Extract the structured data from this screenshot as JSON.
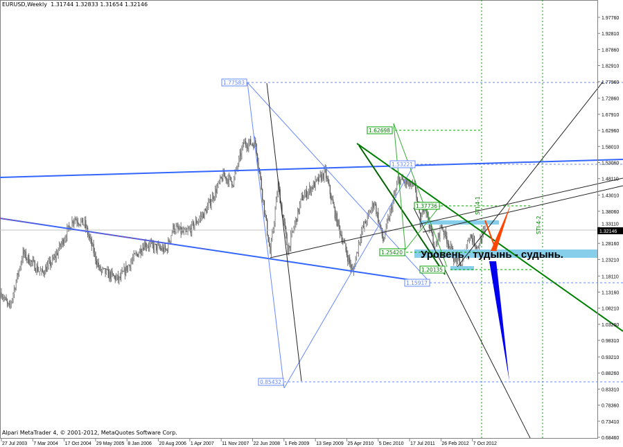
{
  "header": {
    "symbol": "EURUSD,Weekly",
    "ohlc": "1.31744 1.32833 1.31654 1.32146"
  },
  "footer": {
    "copyright": "Alpari MetaTrader 4, © 2001-2012, MetaQuotes Software Corp."
  },
  "annotation_text": "Уровень , тудынь - судынь.",
  "vertical_labels": [
    "STI-4-1",
    "STI-4-2"
  ],
  "price_labels": {
    "high": "1.77583",
    "low": "0.85432",
    "fib_green_top": "1.62698",
    "blue_mid": "1.53221",
    "green_mid": "1.37736",
    "green_low": "1.25420",
    "green_bottom": "1.20135",
    "blue_low": "1.15917"
  },
  "colors": {
    "background": "#ffffff",
    "candle": "#808080",
    "blue_line": "#3366ff",
    "green_line": "#008000",
    "orange": "#ff4500",
    "highlight": "#87ceeb",
    "current_price_bg": "#000000"
  },
  "chart_data": {
    "type": "candlestick",
    "title": "EURUSD,Weekly",
    "current_price": "1.32146",
    "y_ticks": [
      "1.97760",
      "1.92810",
      "1.87860",
      "1.82910",
      "1.77960",
      "1.72860",
      "1.67910",
      "1.62960",
      "1.58010",
      "1.53060",
      "1.48110",
      "1.43010",
      "1.38060",
      "1.33110",
      "1.28160",
      "1.23210",
      "1.18110",
      "1.13160",
      "1.08210",
      "1.03260",
      "0.98310",
      "0.93210",
      "0.88260",
      "0.83310",
      "0.78360",
      "0.73410",
      "0.68460"
    ],
    "ylim": [
      0.6846,
      1.9776
    ],
    "x_ticks": [
      "27 Jul 2003",
      "7 Mar 2004",
      "17 Oct 2004",
      "29 May 2005",
      "8 Jan 2006",
      "20 Aug 2006",
      "1 Apr 2007",
      "11 Nov 2007",
      "22 Jun 2008",
      "1 Feb 2009",
      "13 Sep 2009",
      "25 Apr 2010",
      "5 Dec 2010",
      "17 Jul 2011",
      "26 Feb 2012",
      "7 Oct 2012"
    ],
    "approx_closes": [
      [
        "2003-07-27",
        1.13
      ],
      [
        "2003-09-21",
        1.08
      ],
      [
        "2003-12-28",
        1.25
      ],
      [
        "2004-05-09",
        1.19
      ],
      [
        "2004-08-01",
        1.23
      ],
      [
        "2004-12-26",
        1.36
      ],
      [
        "2005-03-13",
        1.34
      ],
      [
        "2005-06-26",
        1.2
      ],
      [
        "2005-11-13",
        1.17
      ],
      [
        "2006-01-29",
        1.22
      ],
      [
        "2006-05-14",
        1.28
      ],
      [
        "2006-10-15",
        1.26
      ],
      [
        "2006-12-03",
        1.33
      ],
      [
        "2007-03-04",
        1.31
      ],
      [
        "2007-07-22",
        1.38
      ],
      [
        "2007-11-25",
        1.49
      ],
      [
        "2008-02-03",
        1.47
      ],
      [
        "2008-04-20",
        1.59
      ],
      [
        "2008-07-13",
        1.59
      ],
      [
        "2008-10-26",
        1.25
      ],
      [
        "2008-12-21",
        1.46
      ],
      [
        "2009-03-01",
        1.26
      ],
      [
        "2009-06-07",
        1.42
      ],
      [
        "2009-11-22",
        1.5
      ],
      [
        "2010-02-07",
        1.36
      ],
      [
        "2010-06-06",
        1.19
      ],
      [
        "2010-08-01",
        1.31
      ],
      [
        "2010-11-07",
        1.41
      ],
      [
        "2011-01-09",
        1.29
      ],
      [
        "2011-05-01",
        1.48
      ],
      [
        "2011-08-28",
        1.45
      ],
      [
        "2011-10-02",
        1.34
      ],
      [
        "2011-10-30",
        1.41
      ],
      [
        "2012-01-15",
        1.26
      ],
      [
        "2012-02-26",
        1.34
      ],
      [
        "2012-05-27",
        1.24
      ],
      [
        "2012-07-22",
        1.21
      ],
      [
        "2012-09-16",
        1.31
      ],
      [
        "2012-11-11",
        1.27
      ],
      [
        "2013-01-06",
        1.32146
      ]
    ]
  }
}
